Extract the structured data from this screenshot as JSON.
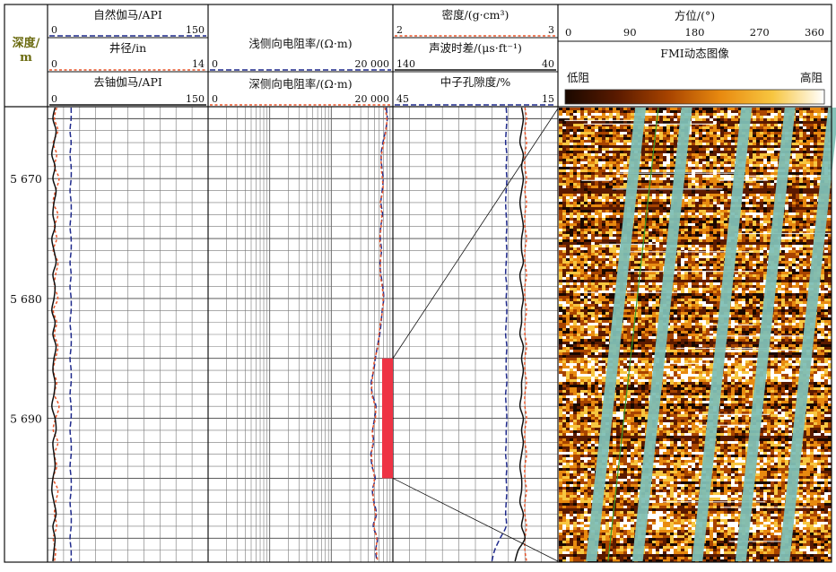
{
  "header": {
    "depth": {
      "label_line1": "深度/",
      "label_line2": "m"
    },
    "track1": {
      "curves": [
        {
          "name": "自然伽马/API",
          "min": "0",
          "max": "150",
          "color": "#1f2a8c",
          "dash": "long"
        },
        {
          "name": "井径/in",
          "min": "0",
          "max": "14",
          "color": "#e8552a",
          "dash": "short"
        },
        {
          "name": "去铀伽马/API",
          "min": "0",
          "max": "150",
          "color": "#111111",
          "dash": "solid"
        }
      ]
    },
    "track2": {
      "curves": [
        {
          "name": "浅侧向电阻率/(Ω·m)",
          "min": "0",
          "max": "20 000",
          "color": "#1f2a8c",
          "dash": "long"
        },
        {
          "name": "深侧向电阻率/(Ω·m)",
          "min": "0",
          "max": "20 000",
          "color": "#e8552a",
          "dash": "short"
        }
      ]
    },
    "track3": {
      "curves": [
        {
          "name": "密度/(g·cm³)",
          "min": "2",
          "max": "3",
          "color": "#e8552a",
          "dash": "short"
        },
        {
          "name": "声波时差/(μs·ft⁻¹)",
          "min": "140",
          "max": "40",
          "color": "#111111",
          "dash": "solid"
        },
        {
          "name": "中子孔隙度/%",
          "min": "45",
          "max": "15",
          "color": "#1f2a8c",
          "dash": "long"
        }
      ]
    },
    "track4": {
      "azimuth_label": "方位/(°)",
      "azimuth_ticks": [
        "0",
        "90",
        "180",
        "270",
        "360"
      ],
      "image_label": "FMI动态图像",
      "low_label": "低阻",
      "high_label": "高阻"
    }
  },
  "chart_data": {
    "type": "line",
    "depth_range": [
      5664,
      5702
    ],
    "depth_ticks": [
      "5 670",
      "5 680",
      "5 690"
    ],
    "depth_tick_values": [
      5670,
      5680,
      5690
    ],
    "highlight_interval": [
      5685,
      5695
    ],
    "sample_depth": [
      5664,
      5665,
      5666,
      5667,
      5668,
      5669,
      5670,
      5671,
      5672,
      5673,
      5674,
      5675,
      5676,
      5677,
      5678,
      5679,
      5680,
      5681,
      5682,
      5683,
      5684,
      5685,
      5686,
      5687,
      5688,
      5689,
      5690,
      5691,
      5692,
      5693,
      5694,
      5695,
      5696,
      5697,
      5698,
      5699,
      5700,
      5701,
      5702
    ],
    "series": [
      {
        "name": "自然伽马/API",
        "track": 1,
        "color": "#1f2a8c",
        "dash": "long",
        "scale": [
          0,
          150
        ],
        "values": [
          22,
          22,
          21,
          22,
          21,
          22,
          22,
          21,
          22,
          22,
          21,
          22,
          22,
          21,
          22,
          21,
          22,
          22,
          21,
          22,
          22,
          21,
          22,
          22,
          21,
          22,
          22,
          21,
          22,
          22,
          21,
          22,
          22,
          21,
          22,
          22,
          21,
          22,
          22
        ]
      },
      {
        "name": "井径/in",
        "track": 1,
        "color": "#e8552a",
        "dash": "short",
        "scale": [
          0,
          14
        ],
        "values": [
          0.8,
          0.6,
          0.9,
          0.5,
          0.8,
          0.6,
          1.0,
          0.7,
          0.5,
          0.9,
          0.6,
          0.8,
          0.5,
          0.9,
          0.7,
          0.6,
          0.9,
          0.5,
          0.8,
          0.6,
          0.9,
          0.7,
          0.5,
          0.8,
          0.6,
          1.0,
          0.7,
          0.5,
          0.9,
          0.6,
          0.8,
          0.5,
          0.9,
          0.7,
          0.6,
          0.8,
          0.5,
          0.7,
          0.6
        ]
      },
      {
        "name": "去铀伽马/API",
        "track": 1,
        "color": "#111111",
        "dash": "solid",
        "scale": [
          0,
          150
        ],
        "values": [
          7,
          5,
          8,
          6,
          4,
          7,
          5,
          8,
          6,
          5,
          7,
          4,
          6,
          8,
          5,
          7,
          6,
          4,
          7,
          5,
          8,
          6,
          5,
          7,
          6,
          4,
          7,
          8,
          5,
          6,
          7,
          5,
          4,
          6,
          8,
          5,
          7,
          6,
          5
        ]
      },
      {
        "name": "浅侧向电阻率/(Ω·m)",
        "track": 2,
        "color": "#1f2a8c",
        "dash": "long",
        "scale": [
          0,
          20000
        ],
        "values": [
          15600,
          16200,
          15200,
          13800,
          12900,
          13200,
          13900,
          13400,
          12800,
          13600,
          12700,
          12500,
          13100,
          12400,
          12800,
          13700,
          14200,
          13400,
          12900,
          12200,
          11200,
          10400,
          9800,
          8900,
          9300,
          10600,
          10100,
          9400,
          9700,
          8800,
          9200,
          10300,
          9300,
          9900,
          10800,
          9600,
          11200,
          10500,
          11000
        ]
      },
      {
        "name": "深侧向电阻率/(Ω·m)",
        "track": 2,
        "color": "#e8552a",
        "dash": "short",
        "scale": [
          0,
          20000
        ],
        "values": [
          14800,
          15900,
          15400,
          14200,
          13100,
          12900,
          13500,
          13800,
          12600,
          13200,
          12900,
          12300,
          12700,
          12600,
          12500,
          13400,
          13900,
          13600,
          12600,
          11900,
          11500,
          10200,
          9600,
          9200,
          9100,
          10300,
          10400,
          9300,
          9500,
          9000,
          9400,
          10000,
          9600,
          9700,
          10500,
          9900,
          10900,
          10800,
          11300
        ]
      },
      {
        "name": "密度/(g·cm³)",
        "track": 3,
        "color": "#e8552a",
        "dash": "short",
        "scale": [
          2,
          3
        ],
        "values": [
          2.8,
          2.81,
          2.8,
          2.81,
          2.8,
          2.8,
          2.81,
          2.8,
          2.81,
          2.8,
          2.8,
          2.81,
          2.8,
          2.8,
          2.81,
          2.8,
          2.8,
          2.81,
          2.8,
          2.8,
          2.81,
          2.8,
          2.8,
          2.81,
          2.8,
          2.8,
          2.81,
          2.8,
          2.8,
          2.81,
          2.8,
          2.8,
          2.81,
          2.8,
          2.8,
          2.81,
          2.8,
          2.8,
          2.81
        ]
      },
      {
        "name": "声波时差/(μs·ft⁻¹)",
        "track": 3,
        "color": "#111111",
        "dash": "solid",
        "scale": [
          140,
          40
        ],
        "values": [
          62,
          61,
          62,
          63,
          61,
          62,
          61,
          62,
          63,
          62,
          61,
          62,
          62,
          61,
          63,
          62,
          61,
          62,
          62,
          63,
          61,
          62,
          61,
          62,
          62,
          63,
          61,
          62,
          61,
          62,
          63,
          62,
          62,
          63,
          61,
          62,
          60,
          64,
          66
        ]
      },
      {
        "name": "中子孔隙度/%",
        "track": 3,
        "color": "#1f2a8c",
        "dash": "long",
        "scale": [
          45,
          15
        ],
        "values": [
          24.4,
          24.3,
          24.4,
          24.5,
          24.3,
          24.4,
          24.3,
          24.4,
          24.5,
          24.4,
          24.3,
          24.4,
          24.3,
          24.4,
          24.5,
          24.3,
          24.4,
          24.3,
          24.4,
          24.5,
          24.3,
          24.4,
          24.4,
          24.3,
          24.5,
          24.4,
          24.3,
          24.4,
          24.4,
          24.5,
          24.3,
          24.4,
          24.3,
          24.4,
          24.5,
          24.4,
          25.5,
          26.5,
          27.0
        ]
      }
    ],
    "fmi": {
      "colormap": [
        "#1a0800",
        "#5a1a00",
        "#a84400",
        "#e88a10",
        "#f7c640",
        "#ffffff"
      ],
      "azimuth_range": [
        0,
        360
      ],
      "band_color": "#7fbfb5",
      "trace_color": "#3a9a2a"
    }
  }
}
